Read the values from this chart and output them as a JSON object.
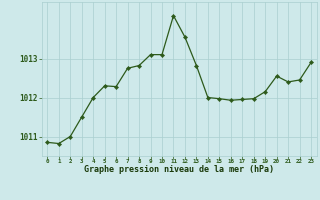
{
  "x": [
    0,
    1,
    2,
    3,
    4,
    5,
    6,
    7,
    8,
    9,
    10,
    11,
    12,
    13,
    14,
    15,
    16,
    17,
    18,
    19,
    20,
    21,
    22,
    23
  ],
  "y": [
    1010.85,
    1010.82,
    1011.0,
    1011.5,
    1012.0,
    1012.3,
    1012.28,
    1012.75,
    1012.82,
    1013.1,
    1013.1,
    1014.1,
    1013.55,
    1012.82,
    1012.0,
    1011.97,
    1011.93,
    1011.95,
    1011.97,
    1012.15,
    1012.55,
    1012.4,
    1012.45,
    1012.9
  ],
  "line_color": "#2d5a1b",
  "marker_color": "#2d5a1b",
  "plot_bg_color": "#cee9ea",
  "grid_color": "#aacfcf",
  "xlabel": "Graphe pression niveau de la mer (hPa)",
  "ylabel_ticks": [
    1011,
    1012,
    1013
  ],
  "ylim": [
    1010.5,
    1014.45
  ],
  "xlim": [
    -0.5,
    23.5
  ],
  "tick_label_color": "#2d5a1b",
  "bottom_label_color": "#1a3a0a",
  "outer_bg": "#cee9ea"
}
